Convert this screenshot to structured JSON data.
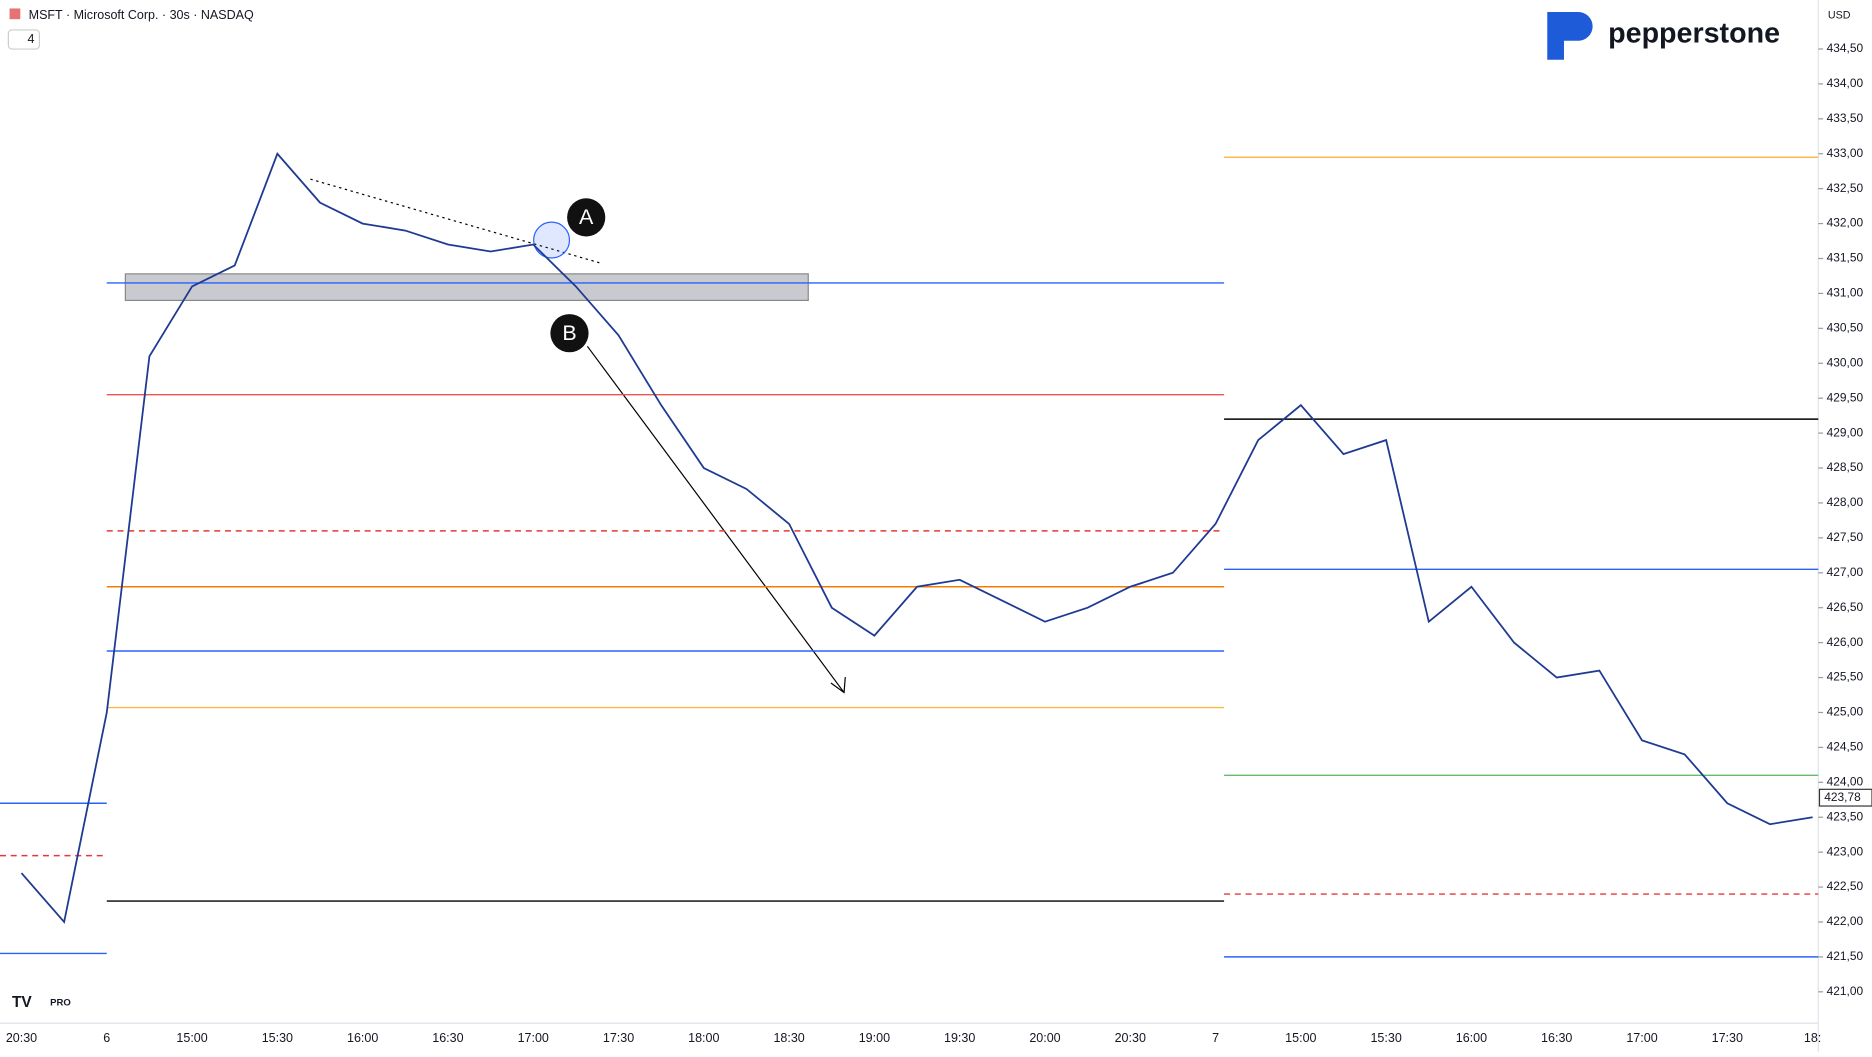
{
  "header": {
    "symbol": "MSFT · Microsoft Corp. · 30s · NASDAQ",
    "indicator_count": "4",
    "currency": "USD",
    "brand": "pepperstone",
    "tv_badge": "PRO"
  },
  "chart_data": {
    "type": "line",
    "color": "#1f3a93",
    "categories": [
      "20:30",
      null,
      "6",
      null,
      "15:00",
      null,
      "15:30",
      null,
      "16:00",
      null,
      "16:30",
      null,
      "17:00",
      null,
      "17:30",
      null,
      "18:00",
      null,
      "18:30",
      null,
      "19:00",
      null,
      "19:30",
      null,
      "20:00",
      null,
      "20:30",
      null,
      "7",
      null,
      "15:00",
      null,
      "15:30",
      null,
      "16:00",
      null,
      "16:30",
      null,
      "17:00",
      null,
      "17:30",
      null,
      "18:"
    ],
    "values": [
      422.7,
      422.0,
      425.0,
      430.1,
      431.1,
      431.4,
      433.0,
      432.3,
      432.0,
      431.9,
      431.7,
      431.6,
      431.7,
      431.1,
      430.4,
      429.4,
      428.5,
      428.2,
      427.7,
      426.5,
      426.1,
      426.8,
      426.9,
      426.6,
      426.3,
      426.5,
      426.8,
      427.0,
      427.7,
      428.9,
      429.4,
      428.7,
      428.9,
      426.3,
      426.8,
      426.0,
      425.5,
      425.6,
      424.6,
      424.4,
      423.7,
      423.4,
      423.5
    ],
    "ylim": [
      420.55,
      435.2
    ],
    "yticks": [
      {
        "value": 421,
        "label": "421,00"
      },
      {
        "value": 421.5,
        "label": "421,50"
      },
      {
        "value": 422,
        "label": "422,00"
      },
      {
        "value": 422.5,
        "label": "422,50"
      },
      {
        "value": 423,
        "label": "423,00"
      },
      {
        "value": 423.5,
        "label": "423,50"
      },
      {
        "value": 424,
        "label": "424,00"
      },
      {
        "value": 424.5,
        "label": "424,50"
      },
      {
        "value": 425,
        "label": "425,00"
      },
      {
        "value": 425.5,
        "label": "425,50"
      },
      {
        "value": 426,
        "label": "426,00"
      },
      {
        "value": 426.5,
        "label": "426,50"
      },
      {
        "value": 427,
        "label": "427,00"
      },
      {
        "value": 427.5,
        "label": "427,50"
      },
      {
        "value": 428,
        "label": "428,00"
      },
      {
        "value": 428.5,
        "label": "428,50"
      },
      {
        "value": 429,
        "label": "429,00"
      },
      {
        "value": 429.5,
        "label": "429,50"
      },
      {
        "value": 430,
        "label": "430,00"
      },
      {
        "value": 430.5,
        "label": "430,50"
      },
      {
        "value": 431,
        "label": "431,00"
      },
      {
        "value": 431.5,
        "label": "431,50"
      },
      {
        "value": 432,
        "label": "432,00"
      },
      {
        "value": 432.5,
        "label": "432,50"
      },
      {
        "value": 433,
        "label": "433,00"
      },
      {
        "value": 433.5,
        "label": "433,50"
      },
      {
        "value": 434,
        "label": "434,00"
      },
      {
        "value": 434.5,
        "label": "434,50"
      }
    ],
    "last_price": {
      "value": 423.78,
      "label": "423,78"
    },
    "zone": [
      430.9,
      431.28
    ],
    "prev_session_levels": [
      {
        "value": 423.7,
        "color": "#2962ff"
      },
      {
        "value": 422.95,
        "color": "#e53935",
        "dashed": true
      },
      {
        "value": 421.55,
        "color": "#2962ff"
      }
    ],
    "day6_levels": [
      {
        "value": 431.15,
        "color": "#2962ff"
      },
      {
        "value": 429.55,
        "color": "#ef5350"
      },
      {
        "value": 427.6,
        "color": "#e53935",
        "dashed": true
      },
      {
        "value": 426.8,
        "color": "#f57c00"
      },
      {
        "value": 425.88,
        "color": "#2962ff"
      },
      {
        "value": 425.07,
        "color": "#ffb74d"
      },
      {
        "value": 422.3,
        "color": "#000000"
      }
    ],
    "day7_levels": [
      {
        "value": 432.95,
        "color": "#ffb74d"
      },
      {
        "value": 429.2,
        "color": "#000000"
      },
      {
        "value": 427.05,
        "color": "#2962ff"
      },
      {
        "value": 424.1,
        "color": "#66bb6a"
      },
      {
        "value": 422.4,
        "color": "#e53935",
        "dashed": true
      },
      {
        "value": 421.5,
        "color": "#2962ff"
      }
    ],
    "annotations": [
      "A",
      "B"
    ]
  }
}
